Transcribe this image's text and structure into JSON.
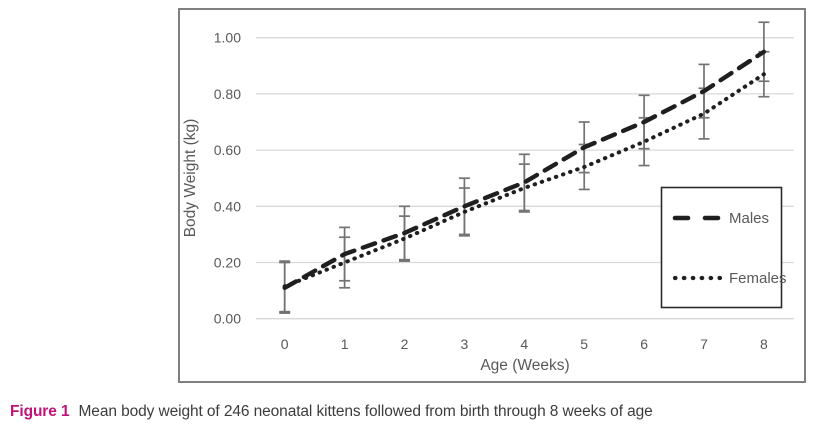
{
  "figure": {
    "caption_label": "Figure 1",
    "caption_text": "Mean body weight of 246 neonatal kittens followed from birth through 8 weeks of age"
  },
  "colors": {
    "caption_label": "#c01378",
    "caption_text": "#3c3c3c",
    "axis_text": "#595959",
    "gridline": "#d9d9d9",
    "chart_border": "#808080",
    "error_bar": "#737373",
    "series_line": "#1f1f1f",
    "legend_border": "#2b2b2b",
    "legend_text": "#595959"
  },
  "chart_data": {
    "type": "line",
    "x": [
      0,
      1,
      2,
      3,
      4,
      5,
      6,
      7,
      8
    ],
    "xlabel": "Age (Weeks)",
    "ylabel": "Body Weight (kg)",
    "ylim": [
      0.0,
      1.0
    ],
    "ytick_step": 0.2,
    "ytick_labels": [
      "0.00",
      "0.20",
      "0.40",
      "0.60",
      "0.80",
      "1.00"
    ],
    "grid": true,
    "legend_position": "inside-right",
    "error_bars": true,
    "series": [
      {
        "name": "Males",
        "style": "dashed",
        "values": [
          0.11,
          0.23,
          0.305,
          0.4,
          0.485,
          0.61,
          0.7,
          0.81,
          0.95
        ],
        "error": [
          0.09,
          0.095,
          0.095,
          0.1,
          0.1,
          0.09,
          0.095,
          0.095,
          0.105
        ]
      },
      {
        "name": "Females",
        "style": "dotted",
        "values": [
          0.115,
          0.2,
          0.285,
          0.38,
          0.465,
          0.54,
          0.63,
          0.73,
          0.87
        ],
        "error": [
          0.09,
          0.09,
          0.08,
          0.085,
          0.085,
          0.08,
          0.085,
          0.09,
          0.08
        ]
      }
    ]
  }
}
